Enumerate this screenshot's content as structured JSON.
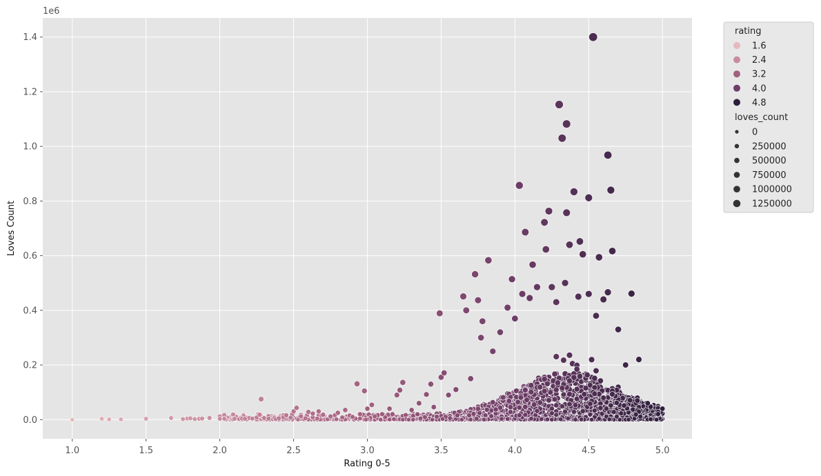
{
  "chart_data": {
    "type": "scatter",
    "xlabel": "Rating 0-5",
    "ylabel": "Loves Count",
    "y_offset_label": "1e6",
    "xlim": [
      0.8,
      5.2
    ],
    "ylim": [
      -0.07,
      1.47
    ],
    "x_ticks": [
      1.0,
      1.5,
      2.0,
      2.5,
      3.0,
      3.5,
      4.0,
      4.5,
      5.0
    ],
    "x_tick_labels": [
      "1.0",
      "1.5",
      "2.0",
      "2.5",
      "3.0",
      "3.5",
      "4.0",
      "4.5",
      "5.0"
    ],
    "y_ticks": [
      0.0,
      0.2,
      0.4,
      0.6,
      0.8,
      1.0,
      1.2,
      1.4
    ],
    "y_tick_labels": [
      "0.0",
      "0.2",
      "0.4",
      "0.6",
      "0.8",
      "1.0",
      "1.2",
      "1.4"
    ],
    "grid": true,
    "background": "#e5e5e5",
    "legend_position": "outside-upper-right",
    "hue": {
      "title": "rating",
      "entries": [
        {
          "label": "1.6",
          "color": "#e4b9bd"
        },
        {
          "label": "2.4",
          "color": "#c88c9e"
        },
        {
          "label": "3.2",
          "color": "#a2607f"
        },
        {
          "label": "4.0",
          "color": "#6e3e67"
        },
        {
          "label": "4.8",
          "color": "#2e1e3c"
        }
      ]
    },
    "size": {
      "title": "loves_count",
      "entries": [
        "0",
        "250000",
        "500000",
        "750000",
        "1000000",
        "1250000"
      ]
    },
    "points_units": "x = rating, y = loves count in millions",
    "points": [
      [
        1.0,
        0.0
      ],
      [
        1.2,
        0.003
      ],
      [
        1.25,
        0.001
      ],
      [
        1.33,
        0.001
      ],
      [
        1.5,
        0.003
      ],
      [
        1.67,
        0.006
      ],
      [
        1.75,
        0.002
      ],
      [
        1.78,
        0.004
      ],
      [
        1.8,
        0.005
      ],
      [
        1.83,
        0.002
      ],
      [
        1.86,
        0.003
      ],
      [
        1.88,
        0.004
      ],
      [
        1.93,
        0.006
      ],
      [
        2.0,
        0.012
      ],
      [
        2.0,
        0.003
      ],
      [
        2.1,
        0.003
      ],
      [
        2.13,
        0.002
      ],
      [
        2.15,
        0.004
      ],
      [
        2.17,
        0.003
      ],
      [
        2.2,
        0.006
      ],
      [
        2.22,
        0.004
      ],
      [
        2.25,
        0.008
      ],
      [
        2.27,
        0.018
      ],
      [
        2.28,
        0.075
      ],
      [
        2.3,
        0.006
      ],
      [
        2.33,
        0.004
      ],
      [
        2.38,
        0.002
      ],
      [
        2.4,
        0.005
      ],
      [
        2.43,
        0.009
      ],
      [
        2.45,
        0.016
      ],
      [
        2.5,
        0.03
      ],
      [
        2.52,
        0.043
      ],
      [
        2.55,
        0.012
      ],
      [
        2.58,
        0.005
      ],
      [
        2.6,
        0.028
      ],
      [
        2.63,
        0.022
      ],
      [
        2.67,
        0.03
      ],
      [
        2.7,
        0.018
      ],
      [
        2.75,
        0.012
      ],
      [
        2.8,
        0.025
      ],
      [
        2.83,
        0.008
      ],
      [
        2.85,
        0.035
      ],
      [
        2.88,
        0.015
      ],
      [
        2.9,
        0.01
      ],
      [
        2.93,
        0.131
      ],
      [
        2.95,
        0.02
      ],
      [
        2.98,
        0.105
      ],
      [
        3.0,
        0.04
      ],
      [
        3.03,
        0.054
      ],
      [
        3.05,
        0.012
      ],
      [
        3.1,
        0.02
      ],
      [
        3.15,
        0.04
      ],
      [
        3.2,
        0.09
      ],
      [
        3.22,
        0.108
      ],
      [
        3.24,
        0.136
      ],
      [
        3.3,
        0.035
      ],
      [
        3.35,
        0.06
      ],
      [
        3.4,
        0.092
      ],
      [
        3.43,
        0.13
      ],
      [
        3.45,
        0.046
      ],
      [
        3.49,
        0.389
      ],
      [
        3.5,
        0.155
      ],
      [
        3.52,
        0.171
      ],
      [
        3.55,
        0.09
      ],
      [
        3.6,
        0.11
      ],
      [
        3.65,
        0.451
      ],
      [
        3.67,
        0.4
      ],
      [
        3.7,
        0.15
      ],
      [
        3.73,
        0.532
      ],
      [
        3.75,
        0.437
      ],
      [
        3.77,
        0.3
      ],
      [
        3.78,
        0.36
      ],
      [
        3.82,
        0.583
      ],
      [
        3.85,
        0.25
      ],
      [
        3.9,
        0.32
      ],
      [
        3.95,
        0.41
      ],
      [
        3.98,
        0.514
      ],
      [
        4.0,
        0.37
      ],
      [
        4.03,
        0.857
      ],
      [
        4.05,
        0.46
      ],
      [
        4.07,
        0.686
      ],
      [
        4.1,
        0.445
      ],
      [
        4.12,
        0.567
      ],
      [
        4.15,
        0.485
      ],
      [
        4.2,
        0.722
      ],
      [
        4.21,
        0.623
      ],
      [
        4.23,
        0.763
      ],
      [
        4.25,
        0.485
      ],
      [
        4.28,
        0.43
      ],
      [
        4.3,
        1.153
      ],
      [
        4.32,
        1.03
      ],
      [
        4.34,
        0.5
      ],
      [
        4.35,
        1.082
      ],
      [
        4.35,
        0.757
      ],
      [
        4.37,
        0.64
      ],
      [
        4.4,
        0.834
      ],
      [
        4.43,
        0.45
      ],
      [
        4.44,
        0.652
      ],
      [
        4.46,
        0.605
      ],
      [
        4.5,
        0.812
      ],
      [
        4.5,
        0.46
      ],
      [
        4.53,
        1.4
      ],
      [
        4.55,
        0.38
      ],
      [
        4.57,
        0.594
      ],
      [
        4.6,
        0.44
      ],
      [
        4.63,
        0.968
      ],
      [
        4.63,
        0.466
      ],
      [
        4.65,
        0.84
      ],
      [
        4.66,
        0.617
      ],
      [
        4.7,
        0.33
      ],
      [
        4.75,
        0.2
      ],
      [
        4.79,
        0.461
      ],
      [
        4.84,
        0.22
      ],
      [
        4.9,
        0.06
      ],
      [
        5.0,
        0.04
      ]
    ]
  }
}
